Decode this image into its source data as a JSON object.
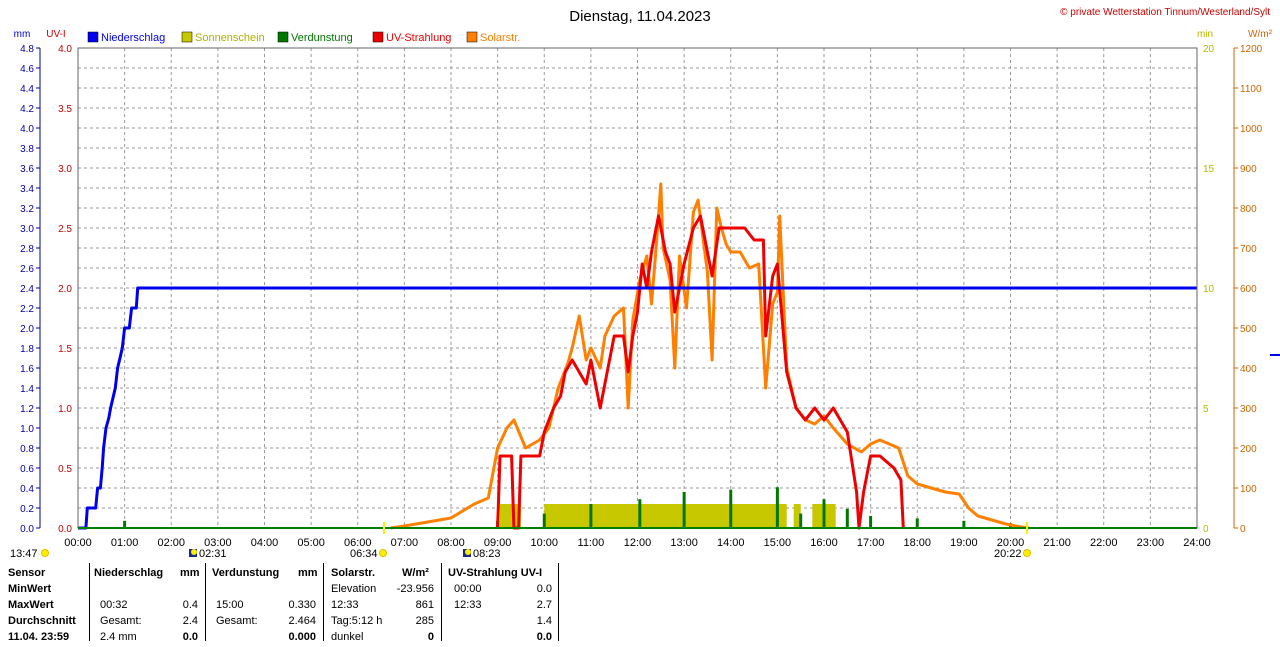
{
  "title": "Dienstag, 11.04.2023",
  "copyright": "© private Wetterstation Tinnum/Westerland/Sylt",
  "axes": {
    "mm_label": "mm",
    "uv_label": "UV-I",
    "min_label": "min",
    "wm2_label": "W/m²",
    "mm_ticks": [
      "0.0",
      "0.2",
      "0.4",
      "0.6",
      "0.8",
      "1.0",
      "1.2",
      "1.4",
      "1.6",
      "1.8",
      "2.0",
      "2.2",
      "2.4",
      "2.6",
      "2.8",
      "3.0",
      "3.2",
      "3.4",
      "3.6",
      "3.8",
      "4.0",
      "4.2",
      "4.4",
      "4.6",
      "4.8"
    ],
    "uv_ticks": [
      "0.0",
      "0.5",
      "1.0",
      "1.5",
      "2.0",
      "2.5",
      "3.0",
      "3.5",
      "4.0"
    ],
    "min_ticks": [
      "0",
      "5",
      "10",
      "15",
      "20"
    ],
    "wm2_ticks": [
      "0",
      "100",
      "200",
      "300",
      "400",
      "500",
      "600",
      "700",
      "800",
      "900",
      "1000",
      "1100",
      "1200"
    ],
    "time_ticks": [
      "00:00",
      "01:00",
      "02:00",
      "03:00",
      "04:00",
      "05:00",
      "06:00",
      "07:00",
      "08:00",
      "09:00",
      "10:00",
      "11:00",
      "12:00",
      "13:00",
      "14:00",
      "15:00",
      "16:00",
      "17:00",
      "18:00",
      "19:00",
      "20:00",
      "21:00",
      "22:00",
      "23:00",
      "24:00"
    ]
  },
  "legend": [
    {
      "label": "Niederschlag",
      "color": "#0000ee"
    },
    {
      "label": "Sonnenschein",
      "color": "#c8c800"
    },
    {
      "label": "Verdunstung",
      "color": "#007800"
    },
    {
      "label": "UV-Strahlung",
      "color": "#ee0000"
    },
    {
      "label": "Solarstr.",
      "color": "#ff8000"
    }
  ],
  "markers": {
    "current_time": "13:47",
    "moonrise": "02:31",
    "sunrise": "06:34",
    "moonset": "08:23",
    "sunset": "20:22"
  },
  "chart_data": {
    "type": "line",
    "x_unit": "hours",
    "xlim": [
      0,
      24
    ],
    "ylim_mm": [
      0,
      4.8
    ],
    "ylim_uv": [
      0,
      4.0
    ],
    "ylim_min": [
      0,
      20
    ],
    "ylim_wm2": [
      0,
      1200
    ],
    "series": [
      {
        "name": "Niederschlag",
        "axis": "mm",
        "points": [
          [
            0,
            0
          ],
          [
            0.17,
            0
          ],
          [
            0.2,
            0.2
          ],
          [
            0.38,
            0.2
          ],
          [
            0.42,
            0.4
          ],
          [
            0.48,
            0.4
          ],
          [
            0.52,
            0.6
          ],
          [
            0.55,
            0.8
          ],
          [
            0.6,
            1.0
          ],
          [
            0.66,
            1.1
          ],
          [
            0.7,
            1.2
          ],
          [
            0.8,
            1.4
          ],
          [
            0.85,
            1.6
          ],
          [
            0.9,
            1.7
          ],
          [
            0.95,
            1.8
          ],
          [
            1.0,
            2.0
          ],
          [
            1.1,
            2.0
          ],
          [
            1.15,
            2.2
          ],
          [
            1.25,
            2.2
          ],
          [
            1.28,
            2.4
          ],
          [
            24,
            2.4
          ]
        ]
      },
      {
        "name": "Solarstr.",
        "axis": "wm2",
        "points": [
          [
            6.7,
            0
          ],
          [
            7.0,
            5
          ],
          [
            7.5,
            15
          ],
          [
            8.0,
            25
          ],
          [
            8.5,
            60
          ],
          [
            8.8,
            75
          ],
          [
            9.0,
            200
          ],
          [
            9.2,
            250
          ],
          [
            9.35,
            270
          ],
          [
            9.6,
            200
          ],
          [
            9.9,
            220
          ],
          [
            10.1,
            250
          ],
          [
            10.3,
            350
          ],
          [
            10.5,
            410
          ],
          [
            10.6,
            450
          ],
          [
            10.75,
            530
          ],
          [
            10.9,
            420
          ],
          [
            11.0,
            450
          ],
          [
            11.2,
            400
          ],
          [
            11.3,
            480
          ],
          [
            11.5,
            530
          ],
          [
            11.7,
            550
          ],
          [
            11.8,
            300
          ],
          [
            11.9,
            520
          ],
          [
            12.05,
            620
          ],
          [
            12.2,
            680
          ],
          [
            12.3,
            560
          ],
          [
            12.4,
            700
          ],
          [
            12.5,
            860
          ],
          [
            12.55,
            700
          ],
          [
            12.7,
            620
          ],
          [
            12.8,
            400
          ],
          [
            12.9,
            680
          ],
          [
            13.05,
            550
          ],
          [
            13.2,
            790
          ],
          [
            13.3,
            820
          ],
          [
            13.5,
            640
          ],
          [
            13.6,
            420
          ],
          [
            13.7,
            800
          ],
          [
            13.8,
            750
          ],
          [
            13.9,
            710
          ],
          [
            14.0,
            690
          ],
          [
            14.2,
            690
          ],
          [
            14.4,
            650
          ],
          [
            14.6,
            660
          ],
          [
            14.75,
            350
          ],
          [
            14.9,
            560
          ],
          [
            15.0,
            590
          ],
          [
            15.05,
            780
          ],
          [
            15.2,
            400
          ],
          [
            15.4,
            300
          ],
          [
            15.6,
            270
          ],
          [
            15.8,
            260
          ],
          [
            16.0,
            280
          ],
          [
            16.2,
            250
          ],
          [
            16.5,
            210
          ],
          [
            16.8,
            190
          ],
          [
            17.0,
            210
          ],
          [
            17.2,
            220
          ],
          [
            17.4,
            210
          ],
          [
            17.6,
            200
          ],
          [
            17.8,
            130
          ],
          [
            18.0,
            110
          ],
          [
            18.3,
            100
          ],
          [
            18.6,
            90
          ],
          [
            18.9,
            85
          ],
          [
            19.1,
            50
          ],
          [
            19.3,
            30
          ],
          [
            19.6,
            20
          ],
          [
            19.9,
            10
          ],
          [
            20.2,
            3
          ],
          [
            20.4,
            0
          ]
        ]
      },
      {
        "name": "UV-Strahlung",
        "axis": "uv",
        "points": [
          [
            9.0,
            0
          ],
          [
            9.05,
            0.6
          ],
          [
            9.3,
            0.6
          ],
          [
            9.35,
            0
          ],
          [
            9.45,
            0
          ],
          [
            9.5,
            0.6
          ],
          [
            9.9,
            0.6
          ],
          [
            10.0,
            0.8
          ],
          [
            10.2,
            1.0
          ],
          [
            10.35,
            1.1
          ],
          [
            10.45,
            1.3
          ],
          [
            10.6,
            1.4
          ],
          [
            10.75,
            1.3
          ],
          [
            10.9,
            1.2
          ],
          [
            11.0,
            1.4
          ],
          [
            11.2,
            1.0
          ],
          [
            11.35,
            1.3
          ],
          [
            11.5,
            1.6
          ],
          [
            11.7,
            1.6
          ],
          [
            11.8,
            1.3
          ],
          [
            11.9,
            1.6
          ],
          [
            12.0,
            1.8
          ],
          [
            12.1,
            2.2
          ],
          [
            12.2,
            2.0
          ],
          [
            12.3,
            2.3
          ],
          [
            12.45,
            2.6
          ],
          [
            12.6,
            2.3
          ],
          [
            12.7,
            2.2
          ],
          [
            12.8,
            1.8
          ],
          [
            12.9,
            2.0
          ],
          [
            13.0,
            2.2
          ],
          [
            13.2,
            2.5
          ],
          [
            13.35,
            2.6
          ],
          [
            13.5,
            2.3
          ],
          [
            13.6,
            2.1
          ],
          [
            13.75,
            2.5
          ],
          [
            13.9,
            2.5
          ],
          [
            14.05,
            2.5
          ],
          [
            14.3,
            2.5
          ],
          [
            14.5,
            2.4
          ],
          [
            14.7,
            2.4
          ],
          [
            14.75,
            1.6
          ],
          [
            14.9,
            2.1
          ],
          [
            15.0,
            2.2
          ],
          [
            15.2,
            1.3
          ],
          [
            15.4,
            1.0
          ],
          [
            15.6,
            0.9
          ],
          [
            15.8,
            1.0
          ],
          [
            16.0,
            0.9
          ],
          [
            16.2,
            1.0
          ],
          [
            16.5,
            0.8
          ],
          [
            16.7,
            0.3
          ],
          [
            16.75,
            0
          ],
          [
            16.85,
            0.3
          ],
          [
            17.0,
            0.6
          ],
          [
            17.2,
            0.6
          ],
          [
            17.5,
            0.5
          ],
          [
            17.65,
            0.4
          ],
          [
            17.7,
            0
          ]
        ]
      }
    ],
    "sunshine_minutes": {
      "name": "Sonnenschein",
      "axis": "min",
      "intervals": [
        [
          9.05,
          9.5,
          1
        ],
        [
          10.0,
          15.2,
          1
        ],
        [
          15.35,
          15.5,
          1
        ],
        [
          15.75,
          16.25,
          1
        ]
      ]
    },
    "evaporation_spikes": {
      "name": "Verdunstung",
      "axis": "min",
      "times": [
        1.0,
        9.0,
        10.0,
        11.0,
        12.05,
        13.0,
        14.0,
        15.0,
        15.5,
        16.0,
        16.5,
        17.0,
        18.0,
        19.0,
        20.0
      ],
      "heights": [
        0.3,
        0.3,
        0.6,
        1.0,
        1.2,
        1.5,
        1.6,
        1.7,
        0.6,
        1.2,
        0.8,
        0.5,
        0.4,
        0.3,
        0.2
      ]
    }
  },
  "table": {
    "headers": {
      "sensor": "Sensor",
      "rain": "Niederschlag",
      "rain_unit": "mm",
      "evap": "Verdunstung",
      "evap_unit": "mm",
      "solar": "Solarstr.",
      "solar_unit": "W/m²",
      "uv": "UV-Strahlung UV-I"
    },
    "rows": [
      {
        "label": "MinWert",
        "c1": "",
        "c2": "",
        "c3": "",
        "c4": "",
        "c5": "Elevation",
        "c6": "-23.956",
        "c7": "00:00",
        "c8": "0.0"
      },
      {
        "label": "MaxWert",
        "c1": "00:32",
        "c2": "0.4",
        "c3": "15:00",
        "c4": "0.330",
        "c5": "12:33",
        "c6": "861",
        "c7": "12:33",
        "c8": "2.7"
      },
      {
        "label": "Durchschnitt",
        "c1": "Gesamt:",
        "c2": "2.4",
        "c3": "Gesamt:",
        "c4": "2.464",
        "c5": "Tag:5:12 h",
        "c6": "285",
        "c7": "",
        "c8": "1.4"
      },
      {
        "label": "11.04. 23:59",
        "c1": "2.4 mm",
        "c2": "0.0",
        "c3": "",
        "c4": "0.000",
        "c5": "dunkel",
        "c6": "0",
        "c7": "",
        "c8": "0.0"
      }
    ]
  }
}
